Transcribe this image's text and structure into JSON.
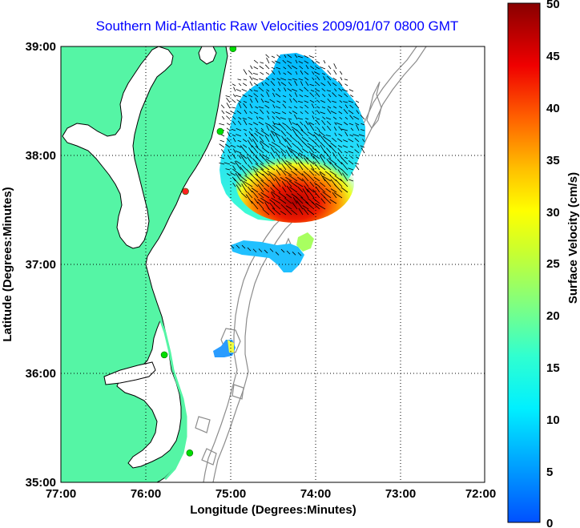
{
  "title": "Southern Mid-Atlantic Raw Velocities 2009/01/07 0800 GMT",
  "x_axis": {
    "label": "Longitude (Degrees:Minutes)",
    "ticks": [
      "77:00",
      "76:00",
      "75:00",
      "74:00",
      "73:00",
      "72:00"
    ]
  },
  "y_axis": {
    "label": "Latitude (Degrees:Minutes)",
    "ticks": [
      "39:00",
      "38:00",
      "37:00",
      "36:00",
      "35:00"
    ]
  },
  "colorbar": {
    "label": "Surface Velocity (cm/s)",
    "ticks": [
      "50",
      "45",
      "40",
      "35",
      "30",
      "25",
      "20",
      "15",
      "10",
      "5",
      "0"
    ],
    "min": 0,
    "max": 50
  },
  "colors": {
    "land": "#55f5a5",
    "water": "#ffffff",
    "coast": "#000000",
    "isobath": "#8c8c8c",
    "grid": "#000000",
    "station": "#00dd00",
    "station_alt": "#ff2020",
    "title": "#0000ff"
  },
  "map_extent": {
    "lon": [
      -77,
      -72
    ],
    "lat": [
      35,
      39
    ]
  },
  "stations": [
    {
      "lon": -74.97,
      "lat": 38.98,
      "type": "green"
    },
    {
      "lon": -75.12,
      "lat": 38.22,
      "type": "green"
    },
    {
      "lon": -75.53,
      "lat": 37.67,
      "type": "red"
    },
    {
      "lon": -75.78,
      "lat": 36.17,
      "type": "green"
    },
    {
      "lon": -75.48,
      "lat": 35.27,
      "type": "green"
    }
  ]
}
